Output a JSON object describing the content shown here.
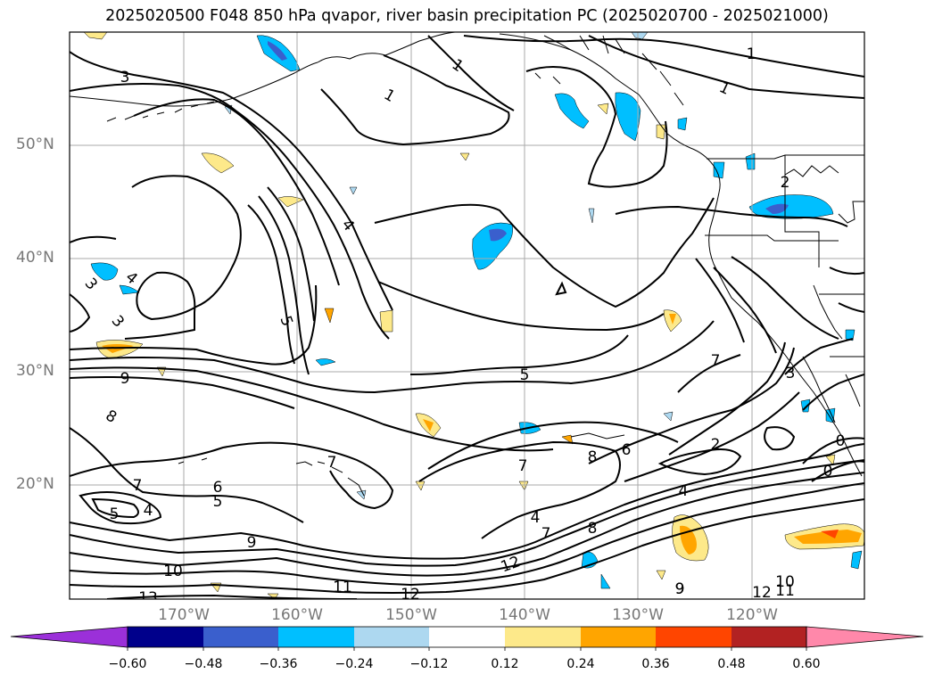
{
  "title": "2025020500 F048 850 hPa qvapor, river basin precipitation PC (2025020700 - 2025021000)",
  "latitude_labels": [
    "50°N",
    "40°N",
    "30°N",
    "20°N"
  ],
  "longitude_labels": [
    "170°W",
    "160°W",
    "150°W",
    "140°W",
    "130°W",
    "120°W"
  ],
  "colorbar": {
    "labels": [
      "−0.60",
      "−0.48",
      "−0.36",
      "−0.24",
      "−0.12",
      "0.12",
      "0.24",
      "0.36",
      "0.48",
      "0.60"
    ],
    "colors": [
      "#9b30d9",
      "#00008b",
      "#3a5fcd",
      "#00bfff",
      "#add8f0",
      "#ffffff",
      "#fde98a",
      "#ffa500",
      "#ff4500",
      "#b22222",
      "#ff88aa"
    ]
  },
  "contour_labels": [
    {
      "text": "3"
    },
    {
      "text": "1"
    },
    {
      "text": "1"
    },
    {
      "text": "1"
    },
    {
      "text": "1"
    },
    {
      "text": "2"
    },
    {
      "text": "4"
    },
    {
      "text": "4"
    },
    {
      "text": "3"
    },
    {
      "text": "3"
    },
    {
      "text": "5"
    },
    {
      "text": "9"
    },
    {
      "text": "8"
    },
    {
      "text": "5"
    },
    {
      "text": "7"
    },
    {
      "text": "3"
    },
    {
      "text": "7"
    },
    {
      "text": "8"
    },
    {
      "text": "6"
    },
    {
      "text": "2"
    },
    {
      "text": "7"
    },
    {
      "text": "4"
    },
    {
      "text": "8"
    },
    {
      "text": "9"
    },
    {
      "text": "7"
    },
    {
      "text": "6"
    },
    {
      "text": "5"
    },
    {
      "text": "5"
    },
    {
      "text": "4"
    },
    {
      "text": "9"
    },
    {
      "text": "10"
    },
    {
      "text": "11"
    },
    {
      "text": "12"
    },
    {
      "text": "12"
    },
    {
      "text": "12"
    },
    {
      "text": "11"
    },
    {
      "text": "10"
    },
    {
      "text": "9"
    },
    {
      "text": "13"
    },
    {
      "text": "7"
    },
    {
      "text": "4"
    },
    {
      "text": "0"
    },
    {
      "text": "0"
    }
  ]
}
